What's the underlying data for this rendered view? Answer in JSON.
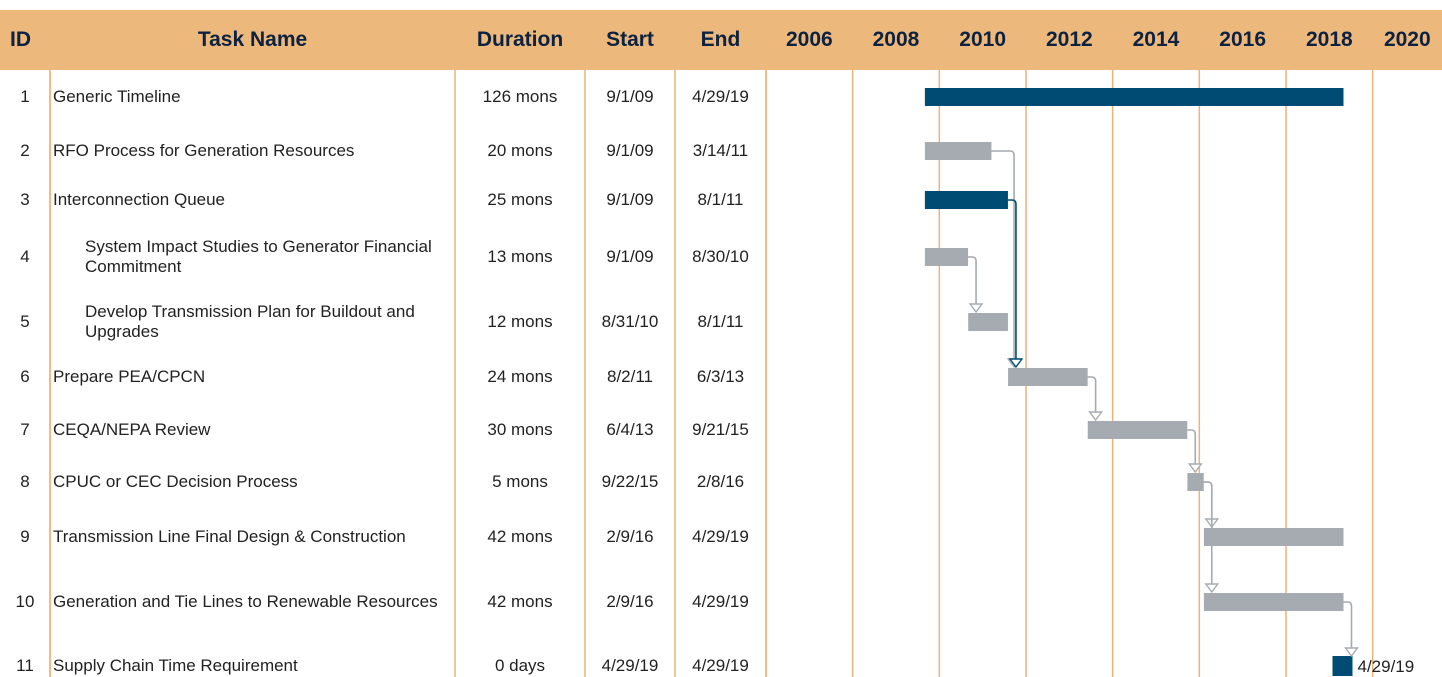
{
  "chart_data": {
    "type": "gantt",
    "columns": [
      "ID",
      "Task Name",
      "Duration",
      "Start",
      "End"
    ],
    "tasks": [
      {
        "id": "1",
        "name": "Generic Timeline",
        "duration": "126 mons",
        "start": "9/1/09",
        "end": "4/29/19",
        "color": "#004b73"
      },
      {
        "id": "2",
        "name": "RFO Process for Generation Resources",
        "duration": "20 mons",
        "start": "9/1/09",
        "end": "3/14/11",
        "color": "#a5abb0"
      },
      {
        "id": "3",
        "name": "Interconnection Queue",
        "duration": "25 mons",
        "start": "9/1/09",
        "end": "8/1/11",
        "color": "#004b73"
      },
      {
        "id": "4",
        "name": "System Impact Studies to Generator Financial Commitment",
        "duration": "13 mons",
        "start": "9/1/09",
        "end": "8/30/10",
        "color": "#a5abb0"
      },
      {
        "id": "5",
        "name": "Develop Transmission Plan for Buildout and Upgrades",
        "duration": "12 mons",
        "start": "8/31/10",
        "end": "8/1/11",
        "color": "#a5abb0"
      },
      {
        "id": "6",
        "name": "Prepare PEA/CPCN",
        "duration": "24 mons",
        "start": "8/2/11",
        "end": "6/3/13",
        "color": "#a5abb0"
      },
      {
        "id": "7",
        "name": "CEQA/NEPA Review",
        "duration": "30 mons",
        "start": "6/4/13",
        "end": "9/21/15",
        "color": "#a5abb0"
      },
      {
        "id": "8",
        "name": "CPUC or CEC Decision Process",
        "duration": "5 mons",
        "start": "9/22/15",
        "end": "2/8/16",
        "color": "#a5abb0"
      },
      {
        "id": "9",
        "name": "Transmission Line Final Design & Construction",
        "duration": "42 mons",
        "start": "2/9/16",
        "end": "4/29/19",
        "color": "#a5abb0"
      },
      {
        "id": "10",
        "name": "Generation and Tie Lines to Renewable Resources",
        "duration": "42 mons",
        "start": "2/9/16",
        "end": "4/29/19",
        "color": "#a5abb0"
      },
      {
        "id": "11",
        "name": "Supply Chain Time Requirement",
        "duration": "0 days",
        "start": "4/29/19",
        "end": "4/29/19",
        "color": "#004b73"
      }
    ],
    "xlim": [
      2006,
      2021.6
    ],
    "xticks": [
      2006,
      2008,
      2010,
      2012,
      2014,
      2016,
      2018,
      2020
    ],
    "header_color": "#edb87b",
    "grid_color": "#e8b47a"
  }
}
